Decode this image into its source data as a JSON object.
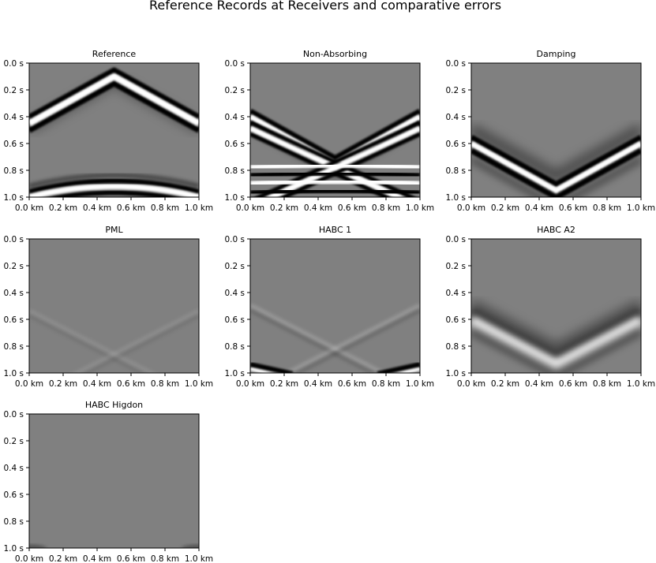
{
  "figure": {
    "suptitle": "Reference Records at Receivers and comparative errors"
  },
  "chart_data": [
    {
      "type": "heatmap",
      "title": "Reference",
      "xlabel": "",
      "ylabel": "",
      "xlim": [
        0.0,
        1.0
      ],
      "ylim": [
        1.0,
        0.0
      ],
      "x_ticks": [
        "0.0 km",
        "0.2 km",
        "0.4 km",
        "0.6 km",
        "0.8 km",
        "1.0 km"
      ],
      "y_ticks": [
        "0.0 s",
        "0.2 s",
        "0.4 s",
        "0.6 s",
        "0.8 s",
        "1.0 s"
      ],
      "colormap": "gray",
      "events": [
        {
          "kind": "direct-wave",
          "apex_x": 0.5,
          "apex_t": 0.1,
          "edge_t": 0.45,
          "polarity": "white-center-black-sides"
        },
        {
          "kind": "bottom-reflection",
          "apex_t": 0.92,
          "edge_t": 1.0,
          "polarity": "white-center-black-sides"
        }
      ]
    },
    {
      "type": "heatmap",
      "title": "Non-Absorbing",
      "xlabel": "",
      "ylabel": "",
      "xlim": [
        0.0,
        1.0
      ],
      "ylim": [
        1.0,
        0.0
      ],
      "x_ticks": [
        "0.0 km",
        "0.2 km",
        "0.4 km",
        "0.6 km",
        "0.8 km",
        "1.0 km"
      ],
      "y_ticks": [
        "0.0 s",
        "0.2 s",
        "0.4 s",
        "0.6 s",
        "0.8 s",
        "1.0 s"
      ],
      "colormap": "gray",
      "events": [
        {
          "kind": "side-reflections",
          "apex_x": 0.5,
          "apex_t": 0.75,
          "edge_t": 0.4,
          "shape": "V"
        },
        {
          "kind": "crossing-reflections",
          "cross_t": 0.78
        },
        {
          "kind": "horizontal-bands",
          "t": [
            0.78,
            0.84,
            0.9,
            0.97
          ]
        }
      ]
    },
    {
      "type": "heatmap",
      "title": "Damping",
      "xlabel": "",
      "ylabel": "",
      "xlim": [
        0.0,
        1.0
      ],
      "ylim": [
        1.0,
        0.0
      ],
      "x_ticks": [
        "0.0 km",
        "0.2 km",
        "0.4 km",
        "0.6 km",
        "0.8 km",
        "1.0 km"
      ],
      "y_ticks": [
        "0.0 s",
        "0.2 s",
        "0.4 s",
        "0.6 s",
        "0.8 s",
        "1.0 s"
      ],
      "colormap": "gray",
      "events": [
        {
          "kind": "residual-reflection",
          "apex_x": 0.5,
          "apex_t": 0.95,
          "edge_t": 0.6,
          "shape": "V"
        }
      ]
    },
    {
      "type": "heatmap",
      "title": "PML",
      "xlabel": "",
      "ylabel": "",
      "xlim": [
        0.0,
        1.0
      ],
      "ylim": [
        1.0,
        0.0
      ],
      "x_ticks": [
        "0.0 km",
        "0.2 km",
        "0.4 km",
        "0.6 km",
        "0.8 km",
        "1.0 km"
      ],
      "y_ticks": [
        "0.0 s",
        "0.2 s",
        "0.4 s",
        "0.6 s",
        "0.8 s",
        "1.0 s"
      ],
      "colormap": "gray",
      "events": [
        {
          "kind": "faint-crossing",
          "cross_t": 0.86
        }
      ]
    },
    {
      "type": "heatmap",
      "title": "HABC 1",
      "xlabel": "",
      "ylabel": "",
      "xlim": [
        0.0,
        1.0
      ],
      "ylim": [
        1.0,
        0.0
      ],
      "x_ticks": [
        "0.0 km",
        "0.2 km",
        "0.4 km",
        "0.6 km",
        "0.8 km",
        "1.0 km"
      ],
      "y_ticks": [
        "0.0 s",
        "0.2 s",
        "0.4 s",
        "0.6 s",
        "0.8 s",
        "1.0 s"
      ],
      "colormap": "gray",
      "events": [
        {
          "kind": "faint-crossing",
          "cross_t": 0.82
        },
        {
          "kind": "corner-reflections",
          "t": 0.97
        }
      ]
    },
    {
      "type": "heatmap",
      "title": "HABC A2",
      "xlabel": "",
      "ylabel": "",
      "xlim": [
        0.0,
        1.0
      ],
      "ylim": [
        1.0,
        0.0
      ],
      "x_ticks": [
        "0.0 km",
        "0.2 km",
        "0.4 km",
        "0.6 km",
        "0.8 km",
        "1.0 km"
      ],
      "y_ticks": [
        "0.0 s",
        "0.2 s",
        "0.4 s",
        "0.6 s",
        "0.8 s",
        "1.0 s"
      ],
      "colormap": "gray",
      "events": [
        {
          "kind": "residual-reflection",
          "apex_x": 0.5,
          "apex_t": 0.93,
          "edge_t": 0.6,
          "shape": "V"
        }
      ]
    },
    {
      "type": "heatmap",
      "title": "HABC Higdon",
      "xlabel": "",
      "ylabel": "",
      "xlim": [
        0.0,
        1.0
      ],
      "ylim": [
        1.0,
        0.0
      ],
      "x_ticks": [
        "0.0 km",
        "0.2 km",
        "0.4 km",
        "0.6 km",
        "0.8 km",
        "1.0 km"
      ],
      "y_ticks": [
        "0.0 s",
        "0.2 s",
        "0.4 s",
        "0.6 s",
        "0.8 s",
        "1.0 s"
      ],
      "colormap": "gray",
      "events": [
        {
          "kind": "faint-corners",
          "t": 0.98
        }
      ]
    }
  ]
}
